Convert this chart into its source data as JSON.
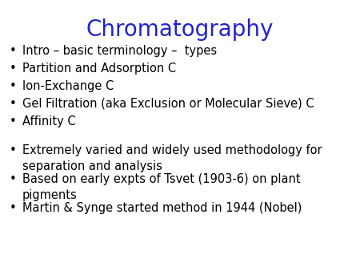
{
  "title": "Chromatography",
  "title_color": "#2222cc",
  "title_fontsize": 20,
  "background_color": "#ffffff",
  "bullet_color": "#000000",
  "text_color": "#000000",
  "bullet_fontsize": 10.5,
  "bullet_char": "•",
  "group1": [
    "Intro – basic terminology –  types",
    "Partition and Adsorption C",
    "Ion-Exchange C",
    "Gel Filtration (aka Exclusion or Molecular Sieve) C",
    "Affinity C"
  ],
  "group2": [
    "Extremely varied and widely used methodology for\nseparation and analysis",
    "Based on early expts of Tsvet (1903-6) on plant\npigments",
    "Martin & Synge started method in 1944 (Nobel)"
  ]
}
